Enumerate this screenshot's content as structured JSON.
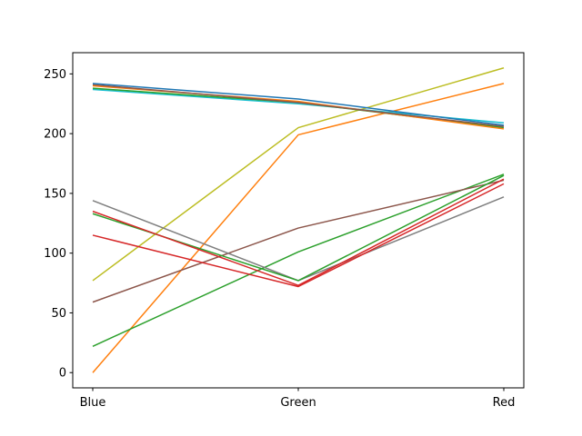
{
  "chart_data": {
    "type": "line",
    "title": "",
    "xlabel": "",
    "ylabel": "",
    "categories": [
      "Blue",
      "Green",
      "Red"
    ],
    "ylim": [
      -12.75,
      267.75
    ],
    "yticks": [
      0,
      50,
      100,
      150,
      200,
      250
    ],
    "grid": false,
    "series": [
      {
        "color": "#ff7f0e",
        "values": [
          0,
          199,
          242
        ]
      },
      {
        "color": "#bcbd22",
        "values": [
          77,
          205,
          255
        ]
      },
      {
        "color": "#2ca02c",
        "values": [
          22,
          101,
          166
        ]
      },
      {
        "color": "#8c564b",
        "values": [
          59,
          121,
          161
        ]
      },
      {
        "color": "#7f7f7f",
        "values": [
          144,
          77,
          147
        ]
      },
      {
        "color": "#2ca02c",
        "values": [
          133,
          77,
          165
        ]
      },
      {
        "color": "#d62728",
        "values": [
          135,
          73,
          162
        ]
      },
      {
        "color": "#d62728",
        "values": [
          115,
          72,
          158
        ]
      },
      {
        "color": "#17becf",
        "values": [
          237,
          225,
          209
        ]
      },
      {
        "color": "#2ca02c",
        "values": [
          238,
          226,
          205
        ]
      },
      {
        "color": "#ff7f0e",
        "values": [
          240,
          227,
          204
        ]
      },
      {
        "color": "#8c564b",
        "values": [
          241,
          226,
          206
        ]
      },
      {
        "color": "#1f77b4",
        "values": [
          242,
          229,
          207
        ]
      }
    ]
  }
}
